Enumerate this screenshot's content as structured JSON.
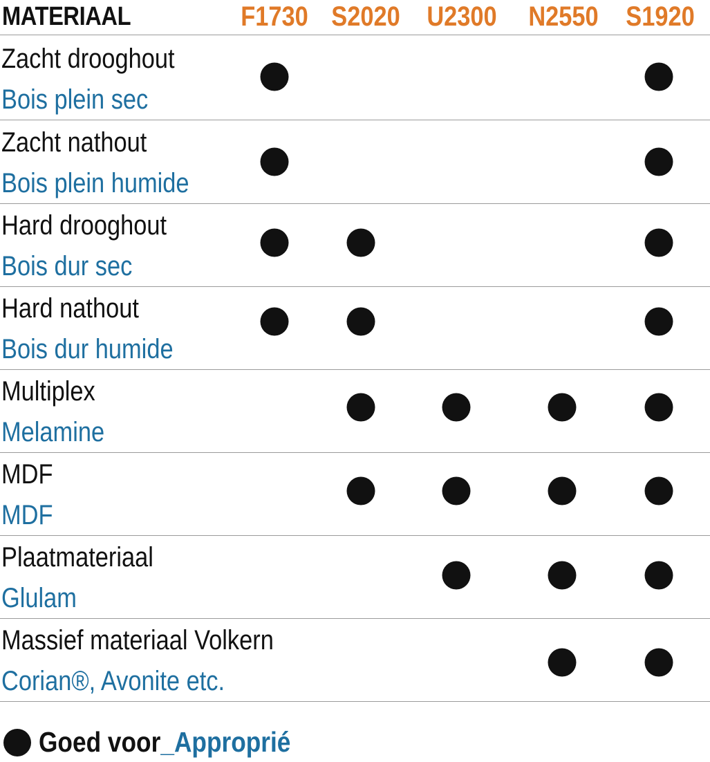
{
  "colors": {
    "product_code": "#e07a28",
    "french": "#1e6fa0",
    "text": "#111111",
    "rule": "#9a9a9a"
  },
  "header": {
    "label": "MATERIAAL",
    "products": [
      "F1730",
      "S2020",
      "U2300",
      "N2550",
      "S1920"
    ]
  },
  "rows": [
    {
      "nl": "Zacht drooghout",
      "fr": "Bois plein sec",
      "suitable": [
        "F1730",
        "S1920"
      ]
    },
    {
      "nl": "Zacht nathout",
      "fr": "Bois plein humide",
      "suitable": [
        "F1730",
        "S1920"
      ]
    },
    {
      "nl": "Hard drooghout",
      "fr": "Bois dur sec",
      "suitable": [
        "F1730",
        "S2020",
        "S1920"
      ]
    },
    {
      "nl": "Hard nathout",
      "fr": "Bois dur humide",
      "suitable": [
        "F1730",
        "S2020",
        "S1920"
      ]
    },
    {
      "nl": "Multiplex",
      "fr": "Melamine",
      "suitable": [
        "S2020",
        "U2300",
        "N2550",
        "S1920"
      ]
    },
    {
      "nl": "MDF",
      "fr": "MDF",
      "suitable": [
        "S2020",
        "U2300",
        "N2550",
        "S1920"
      ]
    },
    {
      "nl": "Plaatmateriaal",
      "fr": "Glulam",
      "suitable": [
        "U2300",
        "N2550",
        "S1920"
      ]
    },
    {
      "nl": "Massief materiaal Volkern",
      "fr": "Corian®, Avonite etc.",
      "suitable": [
        "N2550",
        "S1920"
      ]
    }
  ],
  "legend": {
    "nl": "Goed voor",
    "separator": "_",
    "fr": "Approprié"
  }
}
